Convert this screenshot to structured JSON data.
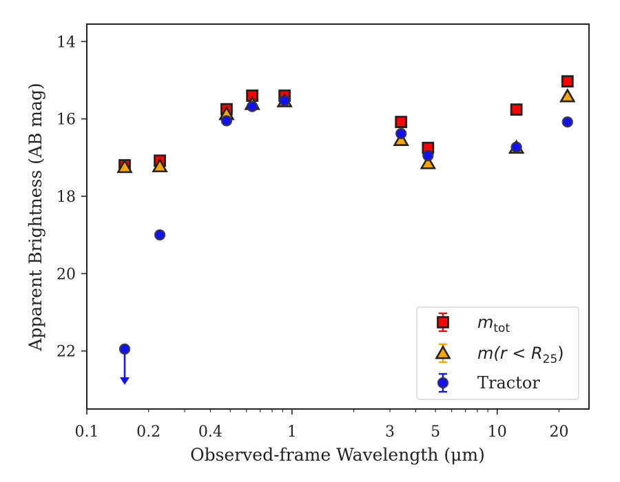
{
  "chart_data": {
    "type": "scatter",
    "xlabel": "Observed-frame Wavelength (μm)",
    "ylabel": "Apparent Brightness (AB mag)",
    "x_scale": "log",
    "xlim": [
      0.1,
      28
    ],
    "ylim": [
      23.5,
      13.55
    ],
    "y_inverted": true,
    "x_ticks": [
      {
        "value": 0.1,
        "label": "0.1"
      },
      {
        "value": 0.2,
        "label": "0.2"
      },
      {
        "value": 0.4,
        "label": "0.4"
      },
      {
        "value": 1,
        "label": "1"
      },
      {
        "value": 3,
        "label": "3"
      },
      {
        "value": 5,
        "label": "5"
      },
      {
        "value": 10,
        "label": "10"
      },
      {
        "value": 20,
        "label": "20"
      }
    ],
    "y_ticks": [
      {
        "value": 14,
        "label": "14"
      },
      {
        "value": 16,
        "label": "16"
      },
      {
        "value": 18,
        "label": "18"
      },
      {
        "value": 20,
        "label": "20"
      },
      {
        "value": 22,
        "label": "22"
      }
    ],
    "grid": false,
    "legend_position": "lower-right",
    "series": [
      {
        "name": "m_tot",
        "marker": "square",
        "color": "#ff0000",
        "edge_color": "#222222",
        "points": [
          {
            "x": 0.153,
            "y": 17.2
          },
          {
            "x": 0.227,
            "y": 17.08
          },
          {
            "x": 0.48,
            "y": 15.75
          },
          {
            "x": 0.64,
            "y": 15.4
          },
          {
            "x": 0.92,
            "y": 15.4
          },
          {
            "x": 3.4,
            "y": 16.08
          },
          {
            "x": 4.6,
            "y": 16.75
          },
          {
            "x": 12.4,
            "y": 15.76
          },
          {
            "x": 22.0,
            "y": 15.03
          }
        ]
      },
      {
        "name": "m(r < R25)",
        "marker": "triangle",
        "color": "#ffa500",
        "edge_color": "#222222",
        "points": [
          {
            "x": 0.153,
            "y": 17.25
          },
          {
            "x": 0.227,
            "y": 17.23
          },
          {
            "x": 0.48,
            "y": 15.88
          },
          {
            "x": 0.64,
            "y": 15.62
          },
          {
            "x": 0.92,
            "y": 15.55
          },
          {
            "x": 3.4,
            "y": 16.55
          },
          {
            "x": 4.6,
            "y": 17.15
          },
          {
            "x": 12.4,
            "y": 16.75
          },
          {
            "x": 22.0,
            "y": 15.42
          }
        ]
      },
      {
        "name": "Tractor",
        "marker": "circle",
        "color": "#1010ff",
        "edge_color": "#333333",
        "points": [
          {
            "x": 0.153,
            "y": 21.95,
            "upper_limit": true
          },
          {
            "x": 0.227,
            "y": 19.0
          },
          {
            "x": 0.48,
            "y": 16.05
          },
          {
            "x": 0.64,
            "y": 15.68
          },
          {
            "x": 0.92,
            "y": 15.53
          },
          {
            "x": 3.4,
            "y": 16.38
          },
          {
            "x": 4.6,
            "y": 16.95
          },
          {
            "x": 12.4,
            "y": 16.73
          },
          {
            "x": 22.0,
            "y": 16.08
          }
        ]
      }
    ],
    "legend": [
      {
        "label": "m",
        "subscript": "tot",
        "style": "math"
      },
      {
        "label": "m(r < R",
        "subscript": "25",
        "suffix": ")",
        "style": "math"
      },
      {
        "label": "Tractor",
        "subscript": "",
        "style": "text"
      }
    ]
  }
}
